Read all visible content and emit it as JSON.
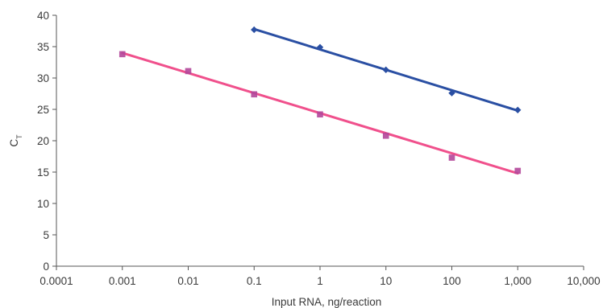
{
  "chart_data": {
    "type": "scatter",
    "xlabel": "Input RNA, ng/reaction",
    "ylabel_main": "C",
    "ylabel_sub": "T",
    "x_scale": "log",
    "xlim": [
      0.0001,
      10000
    ],
    "ylim": [
      0,
      40
    ],
    "x_ticks": [
      {
        "value": 0.0001,
        "label": "0.0001"
      },
      {
        "value": 0.001,
        "label": "0.001"
      },
      {
        "value": 0.01,
        "label": "0.01"
      },
      {
        "value": 0.1,
        "label": "0.1"
      },
      {
        "value": 1,
        "label": "1"
      },
      {
        "value": 10,
        "label": "10"
      },
      {
        "value": 100,
        "label": "100"
      },
      {
        "value": 1000,
        "label": "1,000"
      },
      {
        "value": 10000,
        "label": "10,000"
      }
    ],
    "y_ticks": [
      {
        "value": 0,
        "label": "0"
      },
      {
        "value": 5,
        "label": "5"
      },
      {
        "value": 10,
        "label": "10"
      },
      {
        "value": 15,
        "label": "15"
      },
      {
        "value": 20,
        "label": "20"
      },
      {
        "value": 25,
        "label": "25"
      },
      {
        "value": 30,
        "label": "30"
      },
      {
        "value": 35,
        "label": "35"
      },
      {
        "value": 40,
        "label": "40"
      }
    ],
    "grid": false,
    "legend": "none",
    "series": [
      {
        "color": "#2a4fa3",
        "marker": "diamond",
        "points": [
          {
            "x": 0.1,
            "y": 37.7
          },
          {
            "x": 1,
            "y": 34.9
          },
          {
            "x": 10,
            "y": 31.3
          },
          {
            "x": 100,
            "y": 27.6
          },
          {
            "x": 1000,
            "y": 24.9
          }
        ],
        "fit_line": [
          {
            "x": 0.1,
            "y": 37.8
          },
          {
            "x": 1000,
            "y": 24.8
          }
        ]
      },
      {
        "color": "#f0508c",
        "marker_color": "#b2479a",
        "marker": "square",
        "points": [
          {
            "x": 0.001,
            "y": 33.8
          },
          {
            "x": 0.01,
            "y": 31.1
          },
          {
            "x": 0.1,
            "y": 27.4
          },
          {
            "x": 1,
            "y": 24.2
          },
          {
            "x": 10,
            "y": 20.8
          },
          {
            "x": 100,
            "y": 17.3
          },
          {
            "x": 1000,
            "y": 15.2
          }
        ],
        "fit_line": [
          {
            "x": 0.001,
            "y": 34.0
          },
          {
            "x": 1000,
            "y": 14.8
          }
        ]
      }
    ]
  }
}
